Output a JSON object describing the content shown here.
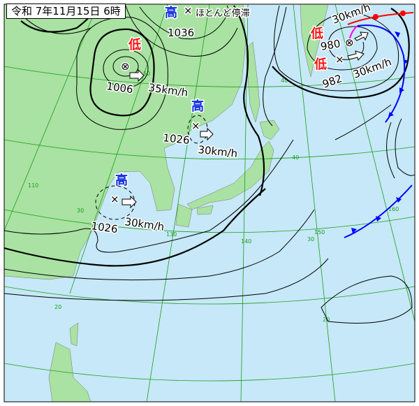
{
  "title": "令和 7年11月15日 6時",
  "colors": {
    "sea": "#c6e8f8",
    "land": "#a9e2a2",
    "high": "#1030e0",
    "low": "#ff1010",
    "warm_front": "#ff0000",
    "cold_front": "#0000ff",
    "occluded_front": "#ff00ff",
    "grid": "#1a9e1a"
  },
  "systems": [
    {
      "type": "high",
      "symbol": "高",
      "pressure": "1036",
      "movement": "ほとんど停滞"
    },
    {
      "type": "low",
      "symbol": "低",
      "pressure": "1006",
      "movement": "35km/h"
    },
    {
      "type": "high",
      "symbol": "高",
      "pressure": "1026",
      "movement": "30km/h"
    },
    {
      "type": "high",
      "symbol": "高",
      "pressure": "1026",
      "movement": "30km/h"
    },
    {
      "type": "low",
      "symbol": "低",
      "pressure": "980",
      "movement": "30km/h"
    },
    {
      "type": "low",
      "symbol": "低",
      "pressure": "982",
      "movement": "30km/h"
    }
  ],
  "grid_labels": [
    "50",
    "40",
    "30",
    "20",
    "110",
    "120",
    "130",
    "140",
    "150",
    "160",
    "40",
    "30",
    "20"
  ]
}
